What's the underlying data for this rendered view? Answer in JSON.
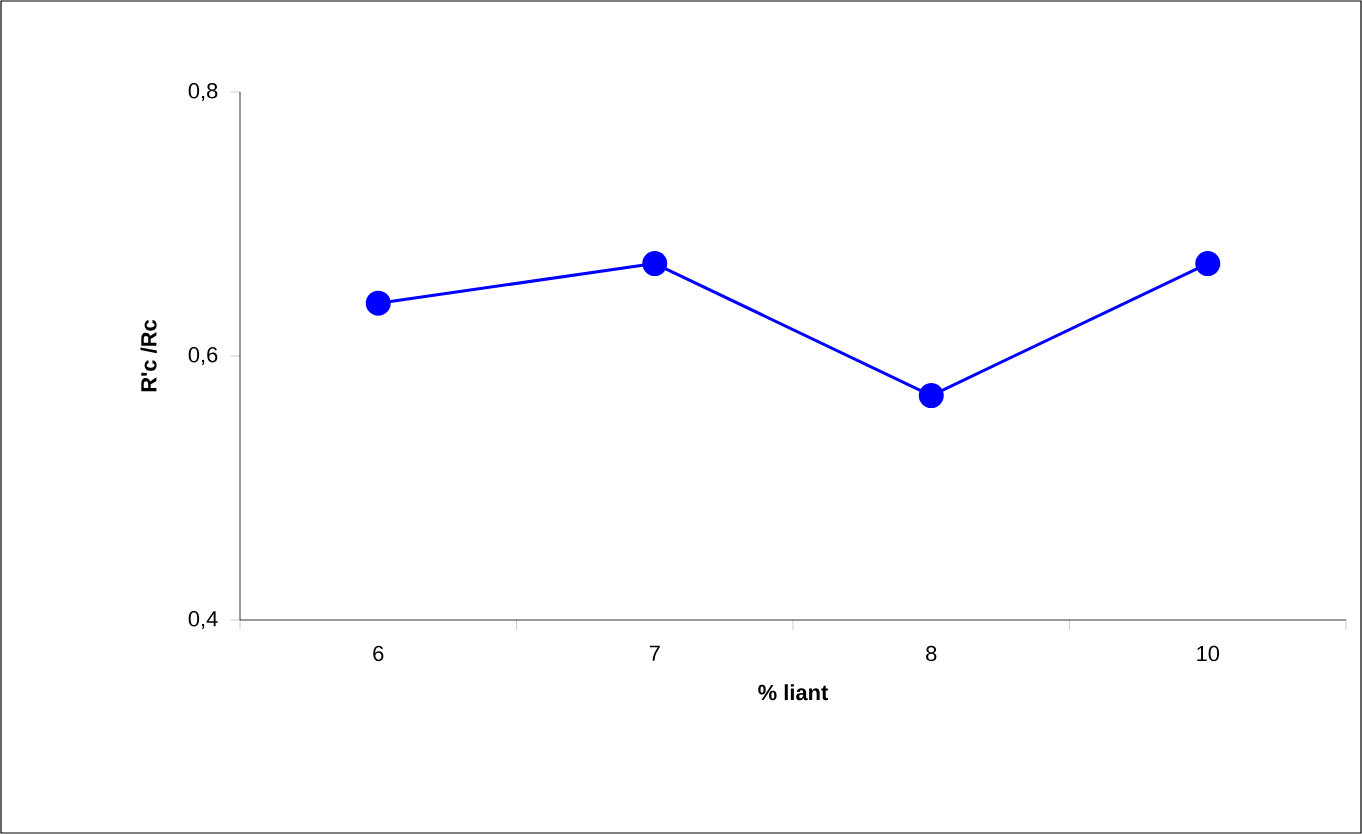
{
  "chart_data": {
    "type": "line",
    "xlabel": "% liant",
    "ylabel": "R'c /Rc",
    "categories": [
      "6",
      "7",
      "8",
      "10"
    ],
    "series": [
      {
        "color": "#0000ff",
        "values": [
          0.64,
          0.67,
          0.57,
          0.67
        ]
      }
    ],
    "ylim": [
      0.4,
      0.8
    ],
    "yticks": [
      {
        "value": 0.4,
        "label": "0,4"
      },
      {
        "value": 0.6,
        "label": "0,6"
      },
      {
        "value": 0.8,
        "label": "0,8"
      }
    ],
    "marker": "circle",
    "line_style": "solid"
  }
}
